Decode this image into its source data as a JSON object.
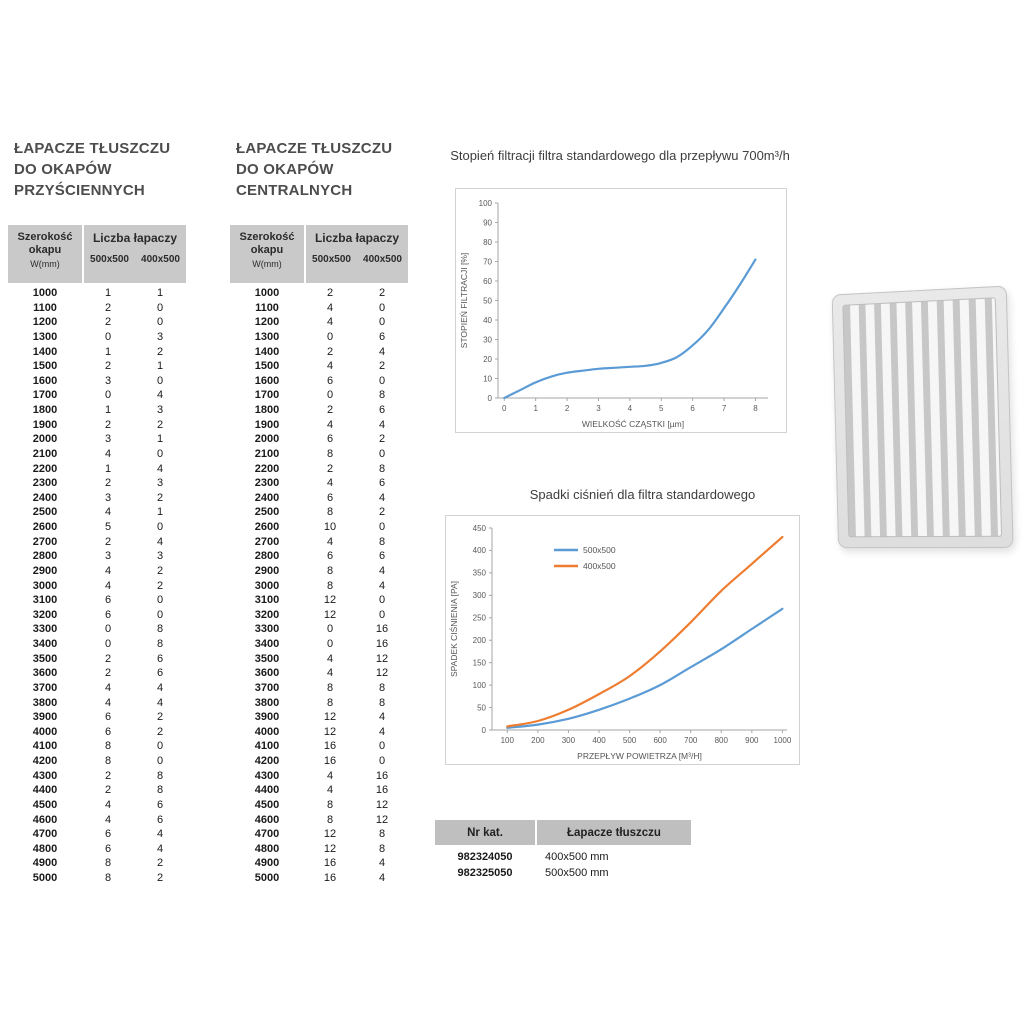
{
  "tables": [
    {
      "title_lines": [
        "ŁAPACZE TŁUSZCZU",
        "DO OKAPÓW",
        "PRZYŚCIENNYCH"
      ],
      "header": {
        "width_label": "Szerokość",
        "width_label2": "okapu",
        "width_unit": "W(mm)",
        "count_label": "Liczba łapaczy",
        "size1": "500x500",
        "size2": "400x500"
      },
      "rows": [
        [
          1000,
          1,
          1
        ],
        [
          1100,
          2,
          0
        ],
        [
          1200,
          2,
          0
        ],
        [
          1300,
          0,
          3
        ],
        [
          1400,
          1,
          2
        ],
        [
          1500,
          2,
          1
        ],
        [
          1600,
          3,
          0
        ],
        [
          1700,
          0,
          4
        ],
        [
          1800,
          1,
          3
        ],
        [
          1900,
          2,
          2
        ],
        [
          2000,
          3,
          1
        ],
        [
          2100,
          4,
          0
        ],
        [
          2200,
          1,
          4
        ],
        [
          2300,
          2,
          3
        ],
        [
          2400,
          3,
          2
        ],
        [
          2500,
          4,
          1
        ],
        [
          2600,
          5,
          0
        ],
        [
          2700,
          2,
          4
        ],
        [
          2800,
          3,
          3
        ],
        [
          2900,
          4,
          2
        ],
        [
          3000,
          4,
          2
        ],
        [
          3100,
          6,
          0
        ],
        [
          3200,
          6,
          0
        ],
        [
          3300,
          0,
          8
        ],
        [
          3400,
          0,
          8
        ],
        [
          3500,
          2,
          6
        ],
        [
          3600,
          2,
          6
        ],
        [
          3700,
          4,
          4
        ],
        [
          3800,
          4,
          4
        ],
        [
          3900,
          6,
          2
        ],
        [
          4000,
          6,
          2
        ],
        [
          4100,
          8,
          0
        ],
        [
          4200,
          8,
          0
        ],
        [
          4300,
          2,
          8
        ],
        [
          4400,
          2,
          8
        ],
        [
          4500,
          4,
          6
        ],
        [
          4600,
          4,
          6
        ],
        [
          4700,
          6,
          4
        ],
        [
          4800,
          6,
          4
        ],
        [
          4900,
          8,
          2
        ],
        [
          5000,
          8,
          2
        ]
      ]
    },
    {
      "title_lines": [
        "ŁAPACZE TŁUSZCZU",
        "DO OKAPÓW",
        "CENTRALNYCH"
      ],
      "header": {
        "width_label": "Szerokość",
        "width_label2": "okapu",
        "width_unit": "W(mm)",
        "count_label": "Liczba łapaczy",
        "size1": "500x500",
        "size2": "400x500"
      },
      "rows": [
        [
          1000,
          2,
          2
        ],
        [
          1100,
          4,
          0
        ],
        [
          1200,
          4,
          0
        ],
        [
          1300,
          0,
          6
        ],
        [
          1400,
          2,
          4
        ],
        [
          1500,
          4,
          2
        ],
        [
          1600,
          6,
          0
        ],
        [
          1700,
          0,
          8
        ],
        [
          1800,
          2,
          6
        ],
        [
          1900,
          4,
          4
        ],
        [
          2000,
          6,
          2
        ],
        [
          2100,
          8,
          0
        ],
        [
          2200,
          2,
          8
        ],
        [
          2300,
          4,
          6
        ],
        [
          2400,
          6,
          4
        ],
        [
          2500,
          8,
          2
        ],
        [
          2600,
          10,
          0
        ],
        [
          2700,
          4,
          8
        ],
        [
          2800,
          6,
          6
        ],
        [
          2900,
          8,
          4
        ],
        [
          3000,
          8,
          4
        ],
        [
          3100,
          12,
          0
        ],
        [
          3200,
          12,
          0
        ],
        [
          3300,
          0,
          16
        ],
        [
          3400,
          0,
          16
        ],
        [
          3500,
          4,
          12
        ],
        [
          3600,
          4,
          12
        ],
        [
          3700,
          8,
          8
        ],
        [
          3800,
          8,
          8
        ],
        [
          3900,
          12,
          4
        ],
        [
          4000,
          12,
          4
        ],
        [
          4100,
          16,
          0
        ],
        [
          4200,
          16,
          0
        ],
        [
          4300,
          4,
          16
        ],
        [
          4400,
          4,
          16
        ],
        [
          4500,
          8,
          12
        ],
        [
          4600,
          8,
          12
        ],
        [
          4700,
          12,
          8
        ],
        [
          4800,
          12,
          8
        ],
        [
          4900,
          16,
          4
        ],
        [
          5000,
          16,
          4
        ]
      ]
    }
  ],
  "chart_data": [
    {
      "type": "line",
      "title": "Stopień filtracji filtra standardowego dla przepływu 700m³/h",
      "xlabel": "WIELKOŚĆ CZĄSTKI [µm]",
      "ylabel": "STOPIEŃ FILTRACJI [%]",
      "xlim": [
        -0.2,
        8.4
      ],
      "ylim": [
        0,
        100
      ],
      "xticks": [
        0,
        1,
        2,
        3,
        4,
        5,
        6,
        7,
        8
      ],
      "yticks": [
        0,
        10,
        20,
        30,
        40,
        50,
        60,
        70,
        80,
        90,
        100
      ],
      "legend": false,
      "grid": false,
      "series": [
        {
          "name": "stopień filtracji",
          "color": "#5b9bd5",
          "x": [
            0,
            0.5,
            1,
            1.5,
            2,
            2.5,
            3,
            3.5,
            4,
            4.5,
            5,
            5.5,
            6,
            6.5,
            7,
            7.5,
            8
          ],
          "y": [
            0,
            4,
            8,
            11,
            13,
            14,
            15,
            15.5,
            16,
            16.5,
            18,
            21,
            27,
            35,
            46,
            58,
            71
          ]
        }
      ]
    },
    {
      "type": "line",
      "title": "Spadki ciśnień dla filtra standardowego",
      "xlabel": "PRZEPŁYW POWIETRZA [M³/H]",
      "ylabel": "SPADEK CIŚNIENIA [PA]",
      "xlim": [
        50,
        1015
      ],
      "ylim": [
        0,
        450
      ],
      "xticks": [
        100,
        200,
        300,
        400,
        500,
        600,
        700,
        800,
        900,
        1000
      ],
      "yticks": [
        0,
        50,
        100,
        150,
        200,
        250,
        300,
        350,
        400,
        450
      ],
      "legend": true,
      "grid": false,
      "series": [
        {
          "name": "500x500",
          "color": "#5b9bd5",
          "x": [
            100,
            200,
            300,
            400,
            500,
            600,
            700,
            800,
            900,
            1000
          ],
          "y": [
            5,
            12,
            25,
            45,
            70,
            100,
            140,
            180,
            225,
            270
          ]
        },
        {
          "name": "400x500",
          "color": "#ed7d31",
          "x": [
            100,
            200,
            300,
            400,
            500,
            600,
            700,
            800,
            900,
            1000
          ],
          "y": [
            8,
            20,
            45,
            80,
            120,
            175,
            240,
            310,
            370,
            430
          ]
        }
      ]
    }
  ],
  "catalog": {
    "header": {
      "col1": "Nr kat.",
      "col2": "Łapacze tłuszczu"
    },
    "rows": [
      [
        "982324050",
        "400x500 mm"
      ],
      [
        "982325050",
        "500x500 mm"
      ]
    ]
  },
  "colors": {
    "blue": "#5b9bd5",
    "orange": "#ed7d31",
    "header_gray": "#c9c9c9"
  }
}
